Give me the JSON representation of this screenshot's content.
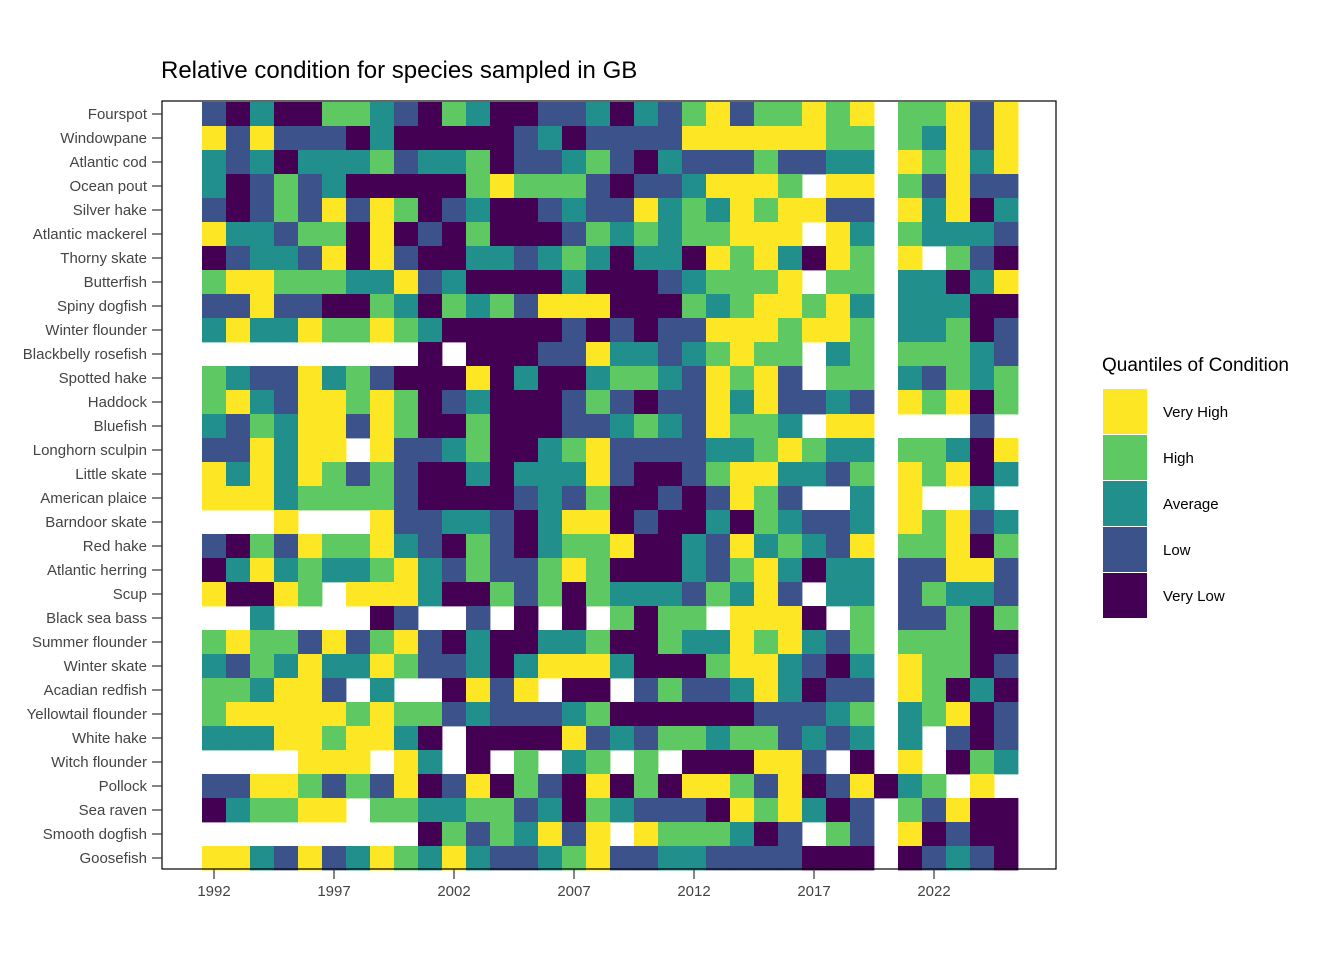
{
  "chart_data": {
    "type": "heatmap",
    "title": "Relative condition for species sampled in GB",
    "xlabel": "",
    "ylabel": "",
    "x_range": [
      1992,
      2025
    ],
    "x_ticks": [
      1992,
      1997,
      2002,
      2007,
      2012,
      2017,
      2022
    ],
    "legend": {
      "title": "Quantiles of Condition",
      "position": "right",
      "levels": [
        {
          "code": 5,
          "label": "Very High",
          "color": "#FDE725"
        },
        {
          "code": 4,
          "label": "High",
          "color": "#5EC962"
        },
        {
          "code": 3,
          "label": "Average",
          "color": "#21908C"
        },
        {
          "code": 2,
          "label": "Low",
          "color": "#3B528B"
        },
        {
          "code": 1,
          "label": "Very Low",
          "color": "#440154"
        }
      ]
    },
    "value_encoding": "0 = no data; 1 Very Low .. 5 Very High; years 1992-2025 left to right",
    "species": [
      {
        "name": "Fourspot",
        "values": [
          2,
          1,
          3,
          1,
          1,
          4,
          4,
          3,
          2,
          1,
          4,
          3,
          1,
          1,
          2,
          2,
          3,
          1,
          3,
          2,
          4,
          5,
          2,
          4,
          4,
          5,
          4,
          5,
          0,
          4,
          4,
          5,
          2,
          5
        ]
      },
      {
        "name": "Windowpane",
        "values": [
          5,
          2,
          5,
          2,
          2,
          2,
          1,
          3,
          1,
          1,
          1,
          1,
          1,
          2,
          3,
          1,
          2,
          2,
          2,
          2,
          5,
          5,
          5,
          5,
          5,
          5,
          4,
          4,
          0,
          4,
          3,
          5,
          2,
          5
        ]
      },
      {
        "name": "Atlantic cod",
        "values": [
          3,
          2,
          3,
          1,
          3,
          3,
          3,
          4,
          2,
          3,
          3,
          4,
          1,
          2,
          2,
          3,
          4,
          2,
          1,
          3,
          2,
          2,
          2,
          4,
          2,
          2,
          3,
          3,
          0,
          5,
          4,
          5,
          3,
          5
        ]
      },
      {
        "name": "Ocean pout",
        "values": [
          3,
          1,
          2,
          4,
          2,
          3,
          1,
          1,
          1,
          1,
          1,
          4,
          5,
          4,
          4,
          4,
          2,
          1,
          2,
          2,
          3,
          5,
          5,
          5,
          4,
          0,
          5,
          5,
          0,
          4,
          2,
          5,
          2,
          2
        ]
      },
      {
        "name": "Silver hake",
        "values": [
          2,
          1,
          2,
          4,
          2,
          5,
          2,
          5,
          4,
          1,
          2,
          3,
          1,
          1,
          2,
          3,
          2,
          2,
          5,
          3,
          4,
          3,
          5,
          4,
          5,
          5,
          2,
          2,
          0,
          5,
          3,
          5,
          1,
          3
        ]
      },
      {
        "name": "Atlantic mackerel",
        "values": [
          5,
          3,
          3,
          2,
          4,
          4,
          1,
          5,
          1,
          2,
          1,
          4,
          1,
          1,
          1,
          2,
          4,
          3,
          4,
          3,
          4,
          4,
          5,
          5,
          5,
          0,
          5,
          3,
          0,
          4,
          3,
          3,
          3,
          2
        ]
      },
      {
        "name": "Thorny skate",
        "values": [
          1,
          2,
          3,
          3,
          2,
          5,
          1,
          5,
          2,
          1,
          1,
          3,
          3,
          2,
          3,
          4,
          3,
          1,
          3,
          3,
          1,
          5,
          4,
          5,
          3,
          1,
          5,
          4,
          0,
          5,
          0,
          4,
          2,
          1
        ]
      },
      {
        "name": "Butterfish",
        "values": [
          4,
          5,
          5,
          4,
          4,
          4,
          3,
          3,
          5,
          2,
          3,
          1,
          1,
          1,
          1,
          3,
          1,
          1,
          1,
          2,
          3,
          4,
          4,
          4,
          5,
          0,
          4,
          4,
          0,
          3,
          3,
          1,
          3,
          5
        ]
      },
      {
        "name": "Spiny dogfish",
        "values": [
          2,
          2,
          5,
          2,
          2,
          1,
          1,
          4,
          3,
          1,
          4,
          3,
          4,
          2,
          5,
          5,
          5,
          1,
          1,
          1,
          4,
          3,
          4,
          5,
          5,
          4,
          5,
          3,
          0,
          3,
          3,
          3,
          1,
          1
        ]
      },
      {
        "name": "Winter flounder",
        "values": [
          3,
          5,
          3,
          3,
          5,
          4,
          4,
          5,
          4,
          3,
          1,
          1,
          1,
          1,
          1,
          2,
          1,
          2,
          1,
          2,
          2,
          5,
          5,
          5,
          4,
          5,
          5,
          4,
          0,
          3,
          3,
          4,
          1,
          2
        ]
      },
      {
        "name": "Blackbelly rosefish",
        "values": [
          0,
          0,
          0,
          0,
          0,
          0,
          0,
          0,
          0,
          1,
          0,
          1,
          1,
          1,
          2,
          2,
          5,
          3,
          3,
          2,
          3,
          4,
          5,
          4,
          4,
          0,
          3,
          4,
          0,
          4,
          4,
          4,
          3,
          2
        ]
      },
      {
        "name": "Spotted hake",
        "values": [
          4,
          3,
          2,
          2,
          5,
          3,
          4,
          2,
          1,
          1,
          1,
          5,
          1,
          3,
          1,
          1,
          3,
          4,
          4,
          3,
          2,
          5,
          4,
          5,
          2,
          0,
          4,
          4,
          0,
          3,
          2,
          4,
          3,
          4
        ]
      },
      {
        "name": "Haddock",
        "values": [
          4,
          5,
          3,
          2,
          5,
          5,
          4,
          5,
          4,
          1,
          2,
          3,
          1,
          1,
          1,
          2,
          4,
          2,
          1,
          2,
          2,
          5,
          3,
          5,
          2,
          2,
          3,
          2,
          0,
          5,
          4,
          5,
          1,
          4
        ]
      },
      {
        "name": "Bluefish",
        "values": [
          3,
          2,
          4,
          3,
          5,
          5,
          2,
          5,
          4,
          1,
          1,
          4,
          1,
          1,
          1,
          2,
          2,
          3,
          4,
          3,
          2,
          5,
          4,
          4,
          3,
          0,
          5,
          5,
          0,
          0,
          0,
          0,
          2,
          0
        ]
      },
      {
        "name": "Longhorn sculpin",
        "values": [
          2,
          2,
          5,
          3,
          5,
          5,
          0,
          5,
          2,
          2,
          3,
          4,
          1,
          1,
          3,
          4,
          5,
          2,
          2,
          2,
          2,
          3,
          3,
          4,
          5,
          4,
          3,
          3,
          0,
          4,
          4,
          3,
          1,
          5
        ]
      },
      {
        "name": "Little skate",
        "values": [
          5,
          3,
          5,
          3,
          5,
          4,
          2,
          4,
          2,
          1,
          1,
          3,
          1,
          3,
          3,
          3,
          5,
          2,
          1,
          1,
          2,
          4,
          5,
          5,
          3,
          3,
          2,
          4,
          0,
          5,
          4,
          5,
          1,
          3
        ]
      },
      {
        "name": "American plaice",
        "values": [
          5,
          5,
          5,
          3,
          4,
          4,
          4,
          4,
          2,
          1,
          1,
          1,
          1,
          2,
          3,
          2,
          4,
          1,
          1,
          2,
          1,
          2,
          5,
          4,
          2,
          0,
          0,
          3,
          0,
          5,
          0,
          0,
          3,
          0
        ]
      },
      {
        "name": "Barndoor skate",
        "values": [
          0,
          0,
          0,
          5,
          0,
          0,
          0,
          5,
          2,
          2,
          3,
          3,
          2,
          1,
          3,
          5,
          5,
          1,
          2,
          1,
          1,
          3,
          1,
          4,
          3,
          2,
          2,
          3,
          0,
          5,
          4,
          5,
          2,
          3
        ]
      },
      {
        "name": "Red hake",
        "values": [
          2,
          1,
          4,
          2,
          5,
          4,
          4,
          5,
          3,
          2,
          1,
          4,
          2,
          1,
          3,
          4,
          4,
          5,
          1,
          1,
          3,
          2,
          5,
          3,
          4,
          3,
          2,
          5,
          0,
          4,
          4,
          5,
          1,
          4
        ]
      },
      {
        "name": "Atlantic herring",
        "values": [
          1,
          3,
          5,
          3,
          4,
          3,
          3,
          4,
          5,
          3,
          2,
          4,
          2,
          2,
          4,
          5,
          4,
          1,
          1,
          1,
          3,
          2,
          4,
          5,
          3,
          1,
          3,
          3,
          0,
          2,
          2,
          5,
          5,
          2
        ]
      },
      {
        "name": "Scup",
        "values": [
          5,
          1,
          1,
          5,
          4,
          0,
          5,
          5,
          5,
          3,
          1,
          1,
          4,
          2,
          4,
          1,
          4,
          3,
          3,
          3,
          2,
          4,
          3,
          5,
          2,
          0,
          3,
          3,
          0,
          2,
          4,
          3,
          3,
          2
        ]
      },
      {
        "name": "Black sea bass",
        "values": [
          0,
          0,
          3,
          0,
          0,
          0,
          0,
          1,
          2,
          0,
          0,
          2,
          0,
          1,
          0,
          1,
          0,
          4,
          1,
          4,
          4,
          0,
          5,
          5,
          5,
          1,
          0,
          4,
          0,
          2,
          2,
          4,
          1,
          4
        ]
      },
      {
        "name": "Summer flounder",
        "values": [
          4,
          5,
          4,
          4,
          2,
          5,
          2,
          4,
          5,
          2,
          1,
          3,
          1,
          1,
          3,
          3,
          4,
          1,
          1,
          4,
          3,
          3,
          5,
          4,
          5,
          3,
          2,
          4,
          0,
          4,
          4,
          4,
          1,
          1
        ]
      },
      {
        "name": "Winter skate",
        "values": [
          3,
          2,
          4,
          3,
          5,
          3,
          3,
          5,
          4,
          2,
          2,
          3,
          1,
          3,
          5,
          5,
          5,
          3,
          1,
          1,
          1,
          4,
          5,
          5,
          3,
          2,
          1,
          3,
          0,
          5,
          4,
          4,
          1,
          2
        ]
      },
      {
        "name": "Acadian redfish",
        "values": [
          4,
          4,
          3,
          5,
          5,
          2,
          0,
          3,
          0,
          0,
          1,
          5,
          2,
          5,
          0,
          1,
          1,
          0,
          2,
          4,
          2,
          2,
          3,
          5,
          3,
          1,
          2,
          2,
          0,
          5,
          4,
          1,
          3,
          1
        ]
      },
      {
        "name": "Yellowtail flounder",
        "values": [
          4,
          5,
          5,
          5,
          5,
          5,
          4,
          5,
          4,
          4,
          2,
          3,
          2,
          2,
          2,
          3,
          4,
          1,
          1,
          1,
          1,
          1,
          1,
          2,
          2,
          2,
          3,
          4,
          0,
          3,
          4,
          5,
          1,
          2
        ]
      },
      {
        "name": "White hake",
        "values": [
          3,
          3,
          3,
          5,
          5,
          4,
          5,
          5,
          3,
          1,
          0,
          1,
          1,
          1,
          1,
          5,
          2,
          3,
          2,
          4,
          4,
          3,
          4,
          4,
          2,
          3,
          2,
          3,
          0,
          3,
          0,
          2,
          1,
          2
        ]
      },
      {
        "name": "Witch flounder",
        "values": [
          0,
          0,
          0,
          0,
          5,
          5,
          5,
          0,
          5,
          3,
          0,
          1,
          0,
          4,
          0,
          3,
          4,
          0,
          4,
          0,
          1,
          1,
          1,
          5,
          5,
          2,
          0,
          1,
          0,
          5,
          0,
          1,
          4,
          3
        ]
      },
      {
        "name": "Pollock",
        "values": [
          2,
          2,
          5,
          5,
          4,
          2,
          4,
          2,
          5,
          1,
          2,
          5,
          1,
          4,
          2,
          1,
          5,
          1,
          4,
          1,
          5,
          5,
          4,
          2,
          5,
          1,
          2,
          5,
          1,
          3,
          4,
          0,
          5,
          0
        ]
      },
      {
        "name": "Sea raven",
        "values": [
          1,
          3,
          4,
          4,
          5,
          5,
          0,
          4,
          4,
          3,
          3,
          4,
          4,
          2,
          3,
          1,
          4,
          3,
          2,
          2,
          2,
          1,
          5,
          4,
          5,
          3,
          1,
          2,
          0,
          4,
          2,
          5,
          1,
          1
        ]
      },
      {
        "name": "Smooth dogfish",
        "values": [
          0,
          0,
          0,
          0,
          0,
          0,
          0,
          0,
          0,
          1,
          4,
          2,
          4,
          3,
          5,
          2,
          5,
          0,
          5,
          4,
          4,
          4,
          3,
          1,
          2,
          0,
          4,
          2,
          0,
          5,
          1,
          2,
          1,
          1
        ]
      },
      {
        "name": "Goosefish",
        "values": [
          5,
          5,
          3,
          2,
          5,
          2,
          3,
          5,
          4,
          3,
          5,
          3,
          2,
          2,
          3,
          4,
          5,
          2,
          2,
          3,
          3,
          2,
          2,
          2,
          2,
          1,
          1,
          1,
          0,
          1,
          2,
          3,
          2,
          1
        ]
      }
    ]
  }
}
